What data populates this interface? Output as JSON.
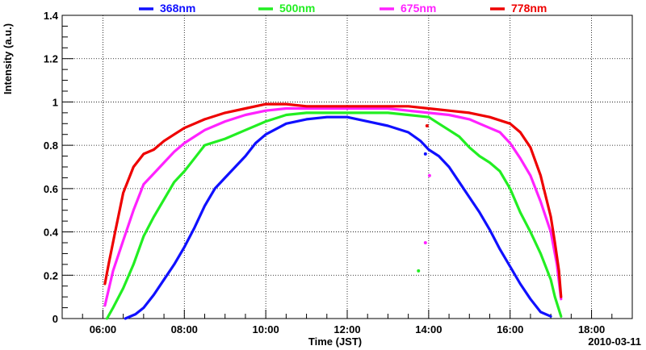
{
  "chart_data": {
    "type": "line",
    "title": "",
    "xlabel": "Time (JST)",
    "ylabel": "Intensity (a.u.)",
    "date_label": "2010-03-11",
    "x_unit": "hours",
    "xlim": [
      5.0,
      19.0
    ],
    "ylim": [
      0,
      1.4
    ],
    "grid": true,
    "legend_position": "top",
    "x_ticks": [
      6,
      8,
      10,
      12,
      14,
      16,
      18
    ],
    "x_tick_labels": [
      "06:00",
      "08:00",
      "10:00",
      "12:00",
      "14:00",
      "16:00",
      "18:00"
    ],
    "y_ticks": [
      0,
      0.2,
      0.4,
      0.6,
      0.8,
      1.0,
      1.2,
      1.4
    ],
    "y_tick_labels": [
      "0",
      "0.2",
      "0.4",
      "0.6",
      "0.8",
      "1",
      "1.2",
      "1.4"
    ],
    "series": [
      {
        "name": "368nm",
        "color": "#1010ff",
        "x": [
          6.55,
          6.8,
          7.0,
          7.25,
          7.5,
          7.75,
          8.0,
          8.25,
          8.5,
          8.75,
          9.0,
          9.25,
          9.5,
          9.75,
          10.0,
          10.5,
          11.0,
          11.5,
          12.0,
          12.5,
          13.0,
          13.5,
          13.8,
          14.0,
          14.25,
          14.5,
          14.75,
          15.0,
          15.25,
          15.5,
          15.75,
          16.0,
          16.25,
          16.5,
          16.75,
          17.0
        ],
        "values": [
          0.0,
          0.02,
          0.05,
          0.11,
          0.18,
          0.25,
          0.33,
          0.42,
          0.52,
          0.6,
          0.65,
          0.7,
          0.75,
          0.81,
          0.85,
          0.9,
          0.92,
          0.93,
          0.93,
          0.91,
          0.89,
          0.86,
          0.82,
          0.78,
          0.75,
          0.7,
          0.63,
          0.56,
          0.49,
          0.41,
          0.32,
          0.24,
          0.16,
          0.09,
          0.03,
          0.01
        ]
      },
      {
        "name": "500nm",
        "color": "#22ee22",
        "x": [
          6.1,
          6.25,
          6.5,
          6.75,
          7.0,
          7.25,
          7.5,
          7.75,
          8.0,
          8.25,
          8.5,
          9.0,
          9.5,
          10.0,
          10.5,
          11.0,
          12.0,
          13.0,
          13.5,
          14.0,
          14.25,
          14.5,
          14.75,
          15.0,
          15.25,
          15.5,
          15.75,
          16.0,
          16.25,
          16.5,
          16.75,
          17.0,
          17.1,
          17.25
        ],
        "values": [
          0.0,
          0.05,
          0.14,
          0.25,
          0.38,
          0.47,
          0.55,
          0.63,
          0.68,
          0.74,
          0.8,
          0.83,
          0.87,
          0.91,
          0.94,
          0.95,
          0.95,
          0.95,
          0.94,
          0.93,
          0.9,
          0.87,
          0.84,
          0.79,
          0.75,
          0.72,
          0.68,
          0.6,
          0.49,
          0.4,
          0.3,
          0.18,
          0.1,
          0.01
        ]
      },
      {
        "name": "675nm",
        "color": "#ff22ff",
        "x": [
          6.05,
          6.25,
          6.5,
          6.75,
          7.0,
          7.25,
          7.5,
          7.75,
          8.0,
          8.25,
          8.5,
          9.0,
          9.5,
          10.0,
          10.5,
          11.0,
          12.0,
          13.0,
          13.5,
          14.0,
          14.5,
          15.0,
          15.25,
          15.5,
          15.75,
          16.0,
          16.25,
          16.5,
          16.75,
          17.0,
          17.15,
          17.25
        ],
        "values": [
          0.06,
          0.22,
          0.36,
          0.5,
          0.62,
          0.67,
          0.72,
          0.77,
          0.81,
          0.84,
          0.87,
          0.91,
          0.94,
          0.96,
          0.97,
          0.97,
          0.97,
          0.97,
          0.96,
          0.95,
          0.94,
          0.92,
          0.9,
          0.88,
          0.86,
          0.81,
          0.74,
          0.66,
          0.54,
          0.4,
          0.25,
          0.09
        ]
      },
      {
        "name": "778nm",
        "color": "#ee0000",
        "x": [
          6.05,
          6.15,
          6.3,
          6.5,
          6.75,
          7.0,
          7.25,
          7.5,
          7.75,
          8.0,
          8.25,
          8.5,
          9.0,
          9.5,
          10.0,
          10.5,
          11.0,
          12.0,
          13.0,
          13.5,
          14.0,
          14.5,
          15.0,
          15.5,
          16.0,
          16.25,
          16.5,
          16.75,
          17.0,
          17.1,
          17.2,
          17.25
        ],
        "values": [
          0.16,
          0.26,
          0.4,
          0.58,
          0.7,
          0.76,
          0.78,
          0.82,
          0.85,
          0.88,
          0.9,
          0.92,
          0.95,
          0.97,
          0.99,
          0.99,
          0.98,
          0.98,
          0.98,
          0.98,
          0.97,
          0.96,
          0.95,
          0.93,
          0.9,
          0.86,
          0.79,
          0.66,
          0.47,
          0.35,
          0.22,
          0.1
        ]
      }
    ],
    "outliers": [
      {
        "series": "500nm",
        "x": 13.75,
        "y": 0.22
      },
      {
        "series": "675nm",
        "x": 13.92,
        "y": 0.35
      },
      {
        "series": "675nm",
        "x": 14.02,
        "y": 0.66
      },
      {
        "series": "368nm",
        "x": 13.92,
        "y": 0.76
      },
      {
        "series": "778nm",
        "x": 13.96,
        "y": 0.89
      }
    ]
  }
}
